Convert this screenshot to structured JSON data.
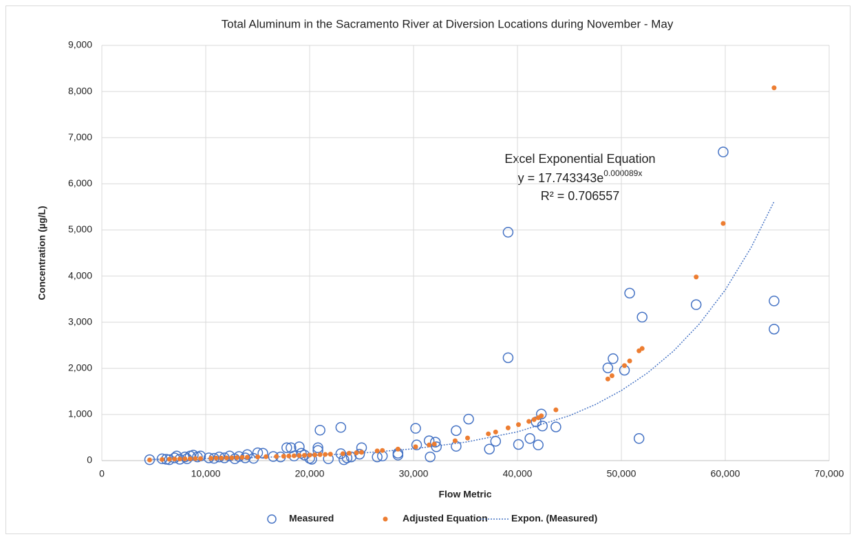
{
  "chart_data": {
    "type": "scatter",
    "title": "Total Aluminum in the Sacramento River at Diversion Locations during November - May",
    "x_label": "Flow Metric",
    "y_label": "Concentration (µg/L)",
    "annotation": {
      "heading": "Excel Exponential Equation",
      "equation": "y = 17.743343e",
      "equation_exponent": "0.000089x",
      "r_squared": "R² = 0.706557"
    },
    "xlim": [
      0,
      70000
    ],
    "ylim": [
      0,
      9000
    ],
    "xticks": [
      0,
      {
        "value": 10000,
        "label": "10,000"
      },
      {
        "value": 20000,
        "label": "20,000"
      },
      {
        "value": 30000,
        "label": "30,000"
      },
      {
        "value": 40000,
        "label": "40,000"
      },
      {
        "value": 50000,
        "label": "50,000"
      },
      {
        "value": 60000,
        "label": "60,000"
      },
      {
        "value": 70000,
        "label": "70,000"
      }
    ],
    "yticks": [
      0,
      {
        "value": 1000,
        "label": "1,000"
      },
      {
        "value": 2000,
        "label": "2,000"
      },
      {
        "value": 3000,
        "label": "3,000"
      },
      {
        "value": 4000,
        "label": "4,000"
      },
      {
        "value": 5000,
        "label": "5,000"
      },
      {
        "value": 6000,
        "label": "6,000"
      },
      {
        "value": 7000,
        "label": "7,000"
      },
      {
        "value": 8000,
        "label": "8,000"
      },
      {
        "value": 9000,
        "label": "9,000"
      }
    ],
    "grid": true,
    "legend": "bottom",
    "series": [
      {
        "name": "Measured",
        "type": "scatter",
        "marker": "hollow",
        "color": "#4472c4",
        "x": [
          4600,
          5800,
          6200,
          6500,
          7000,
          7200,
          7500,
          8000,
          8200,
          8500,
          8800,
          9200,
          9500,
          10300,
          10800,
          11300,
          11800,
          12300,
          12800,
          13200,
          13800,
          14000,
          14600,
          15000,
          15500,
          16500,
          17200,
          17800,
          18200,
          18500,
          19000,
          19200,
          19500,
          20000,
          20200,
          20800,
          20800,
          21000,
          21800,
          23000,
          23000,
          23300,
          23600,
          24000,
          24800,
          25000,
          26500,
          27000,
          28500,
          28500,
          30200,
          30300,
          31500,
          31600,
          32100,
          32200,
          34100,
          34100,
          35300,
          37300,
          37900,
          39100,
          39100,
          40100,
          41200,
          41800,
          42000,
          42300,
          42400,
          43700,
          48700,
          49200,
          50300,
          50800,
          51700,
          52000,
          57200,
          59800,
          64700,
          64700
        ],
        "values": [
          20,
          40,
          30,
          20,
          60,
          100,
          30,
          80,
          40,
          100,
          120,
          80,
          100,
          60,
          50,
          80,
          60,
          100,
          40,
          90,
          60,
          130,
          50,
          170,
          160,
          90,
          80,
          280,
          280,
          100,
          300,
          160,
          120,
          50,
          30,
          220,
          280,
          660,
          40,
          720,
          150,
          20,
          60,
          80,
          140,
          280,
          80,
          100,
          120,
          160,
          700,
          340,
          430,
          80,
          400,
          300,
          650,
          310,
          900,
          250,
          420,
          4950,
          2230,
          350,
          480,
          840,
          340,
          1010,
          750,
          730,
          2010,
          2210,
          1960,
          3630,
          480,
          3110,
          3380,
          6690,
          3460,
          2850
        ]
      },
      {
        "name": "Adjusted Equation",
        "type": "scatter",
        "marker": "filled",
        "color": "#ed7d31",
        "x": [
          4600,
          5800,
          6500,
          7000,
          7500,
          8000,
          8500,
          9000,
          9500,
          10500,
          11000,
          11500,
          12000,
          12500,
          13000,
          13500,
          14000,
          15000,
          15800,
          16800,
          17500,
          18000,
          18500,
          19000,
          19500,
          20000,
          20500,
          21000,
          21500,
          22000,
          23200,
          23800,
          24500,
          25000,
          26500,
          27000,
          28500,
          30200,
          31500,
          32000,
          34000,
          35200,
          37200,
          37900,
          39100,
          40100,
          41100,
          41600,
          42000,
          42300,
          43700,
          48700,
          49100,
          50300,
          50800,
          51700,
          52000,
          57200,
          59800,
          64700
        ],
        "values": [
          15,
          25,
          30,
          35,
          35,
          40,
          40,
          45,
          45,
          50,
          55,
          55,
          60,
          60,
          65,
          70,
          75,
          80,
          85,
          90,
          95,
          100,
          105,
          110,
          115,
          120,
          125,
          130,
          135,
          140,
          150,
          160,
          170,
          180,
          210,
          220,
          250,
          300,
          340,
          360,
          430,
          490,
          580,
          620,
          710,
          780,
          850,
          890,
          930,
          970,
          1100,
          1770,
          1840,
          2060,
          2160,
          2380,
          2430,
          3980,
          5140,
          8080
        ]
      },
      {
        "name": "Expon. (Measured)",
        "type": "line",
        "line_style": "dotted",
        "color": "#4472c4",
        "x": [
          4600,
          10000,
          15000,
          20000,
          25000,
          30000,
          35000,
          40000,
          45000,
          47500,
          50000,
          52500,
          55000,
          57500,
          60000,
          62500,
          64700
        ],
        "values": [
          27,
          43,
          67,
          105,
          164,
          256,
          400,
          624,
          974,
          1216,
          1519,
          1898,
          2371,
          2961,
          3700,
          4624,
          5616
        ]
      }
    ]
  }
}
